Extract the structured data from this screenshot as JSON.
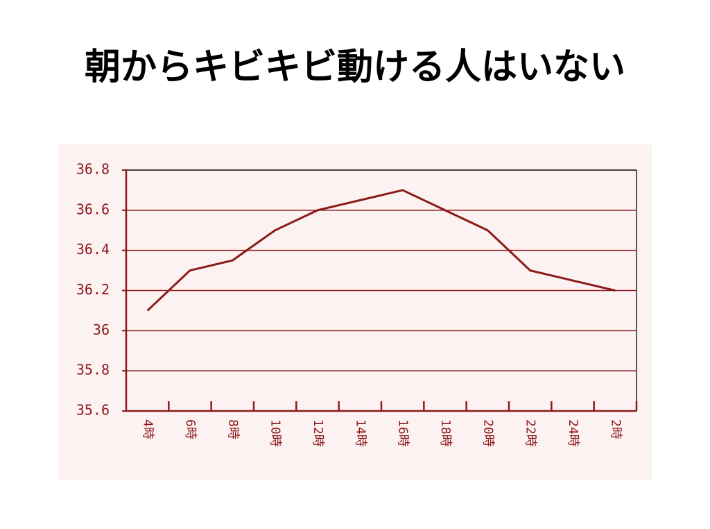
{
  "chart_data": {
    "type": "line",
    "title": "朝からキビキビ動ける人はいない",
    "categories": [
      "4時",
      "6時",
      "8時",
      "10時",
      "12時",
      "14時",
      "16時",
      "18時",
      "20時",
      "22時",
      "24時",
      "2時"
    ],
    "values": [
      36.1,
      36.3,
      36.35,
      36.5,
      36.6,
      36.65,
      36.7,
      36.6,
      36.5,
      36.3,
      36.25,
      36.2
    ],
    "color": "#8b1a1a",
    "ylim": [
      35.6,
      36.8
    ],
    "yticks": [
      35.6,
      35.8,
      36,
      36.2,
      36.4,
      36.6,
      36.8
    ],
    "grid": true
  }
}
